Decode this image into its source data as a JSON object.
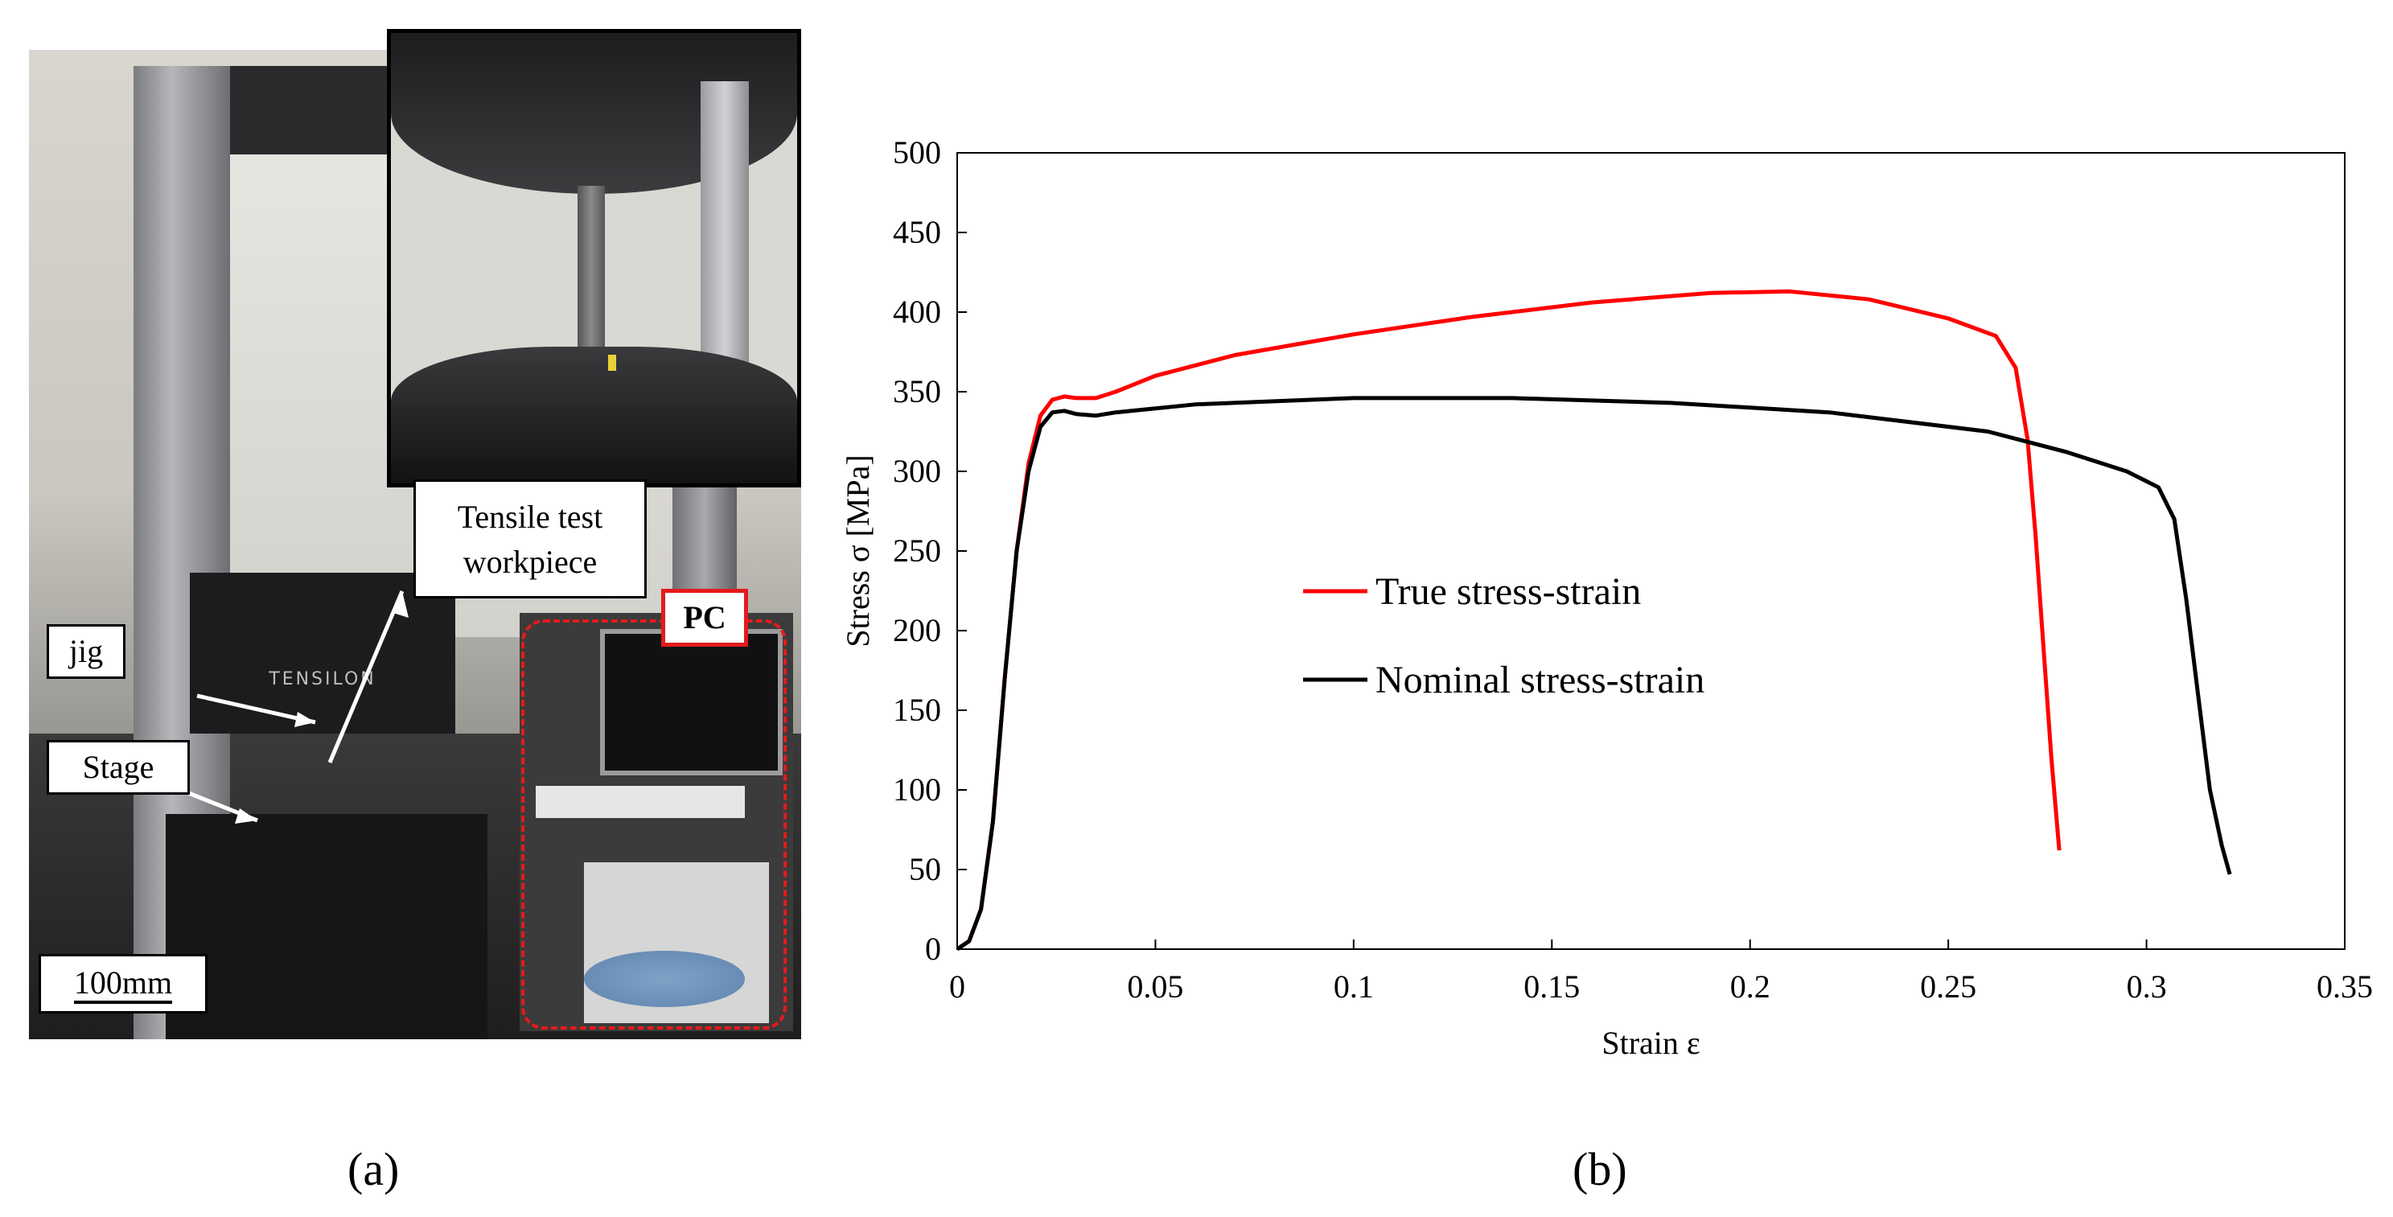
{
  "panel_a": {
    "caption": "(a)",
    "labels": {
      "tensile_line1": "Tensile test",
      "tensile_line2": "workpiece",
      "jig": "jig",
      "stage": "Stage",
      "pc": "PC",
      "scale": "100mm"
    },
    "machine_brand": "TENSILON"
  },
  "panel_b": {
    "caption": "(b)"
  },
  "colors": {
    "true_series": "#ff0000",
    "nominal_series": "#000000",
    "pc_outline": "#e41a1c"
  },
  "chart_data": {
    "type": "line",
    "xlabel": "Strain ε",
    "ylabel": "Stress σ [MPa]",
    "xlim": [
      0,
      0.35
    ],
    "ylim": [
      0,
      500
    ],
    "xticks": [
      0,
      0.05,
      0.1,
      0.15,
      0.2,
      0.25,
      0.3,
      0.35
    ],
    "xtick_labels": [
      "0",
      "0.05",
      "0.1",
      "0.15",
      "0.2",
      "0.25",
      "0.3",
      "0.35"
    ],
    "yticks": [
      0,
      50,
      100,
      150,
      200,
      250,
      300,
      350,
      400,
      450,
      500
    ],
    "ytick_labels": [
      "0",
      "50",
      "100",
      "150",
      "200",
      "250",
      "300",
      "350",
      "400",
      "450",
      "500"
    ],
    "grid": false,
    "legend_position": "center-left",
    "series": [
      {
        "name": "True stress-strain",
        "color": "#ff0000",
        "points": [
          [
            0,
            0
          ],
          [
            0.003,
            5
          ],
          [
            0.006,
            25
          ],
          [
            0.009,
            80
          ],
          [
            0.012,
            170
          ],
          [
            0.015,
            250
          ],
          [
            0.018,
            305
          ],
          [
            0.021,
            335
          ],
          [
            0.024,
            345
          ],
          [
            0.027,
            347
          ],
          [
            0.03,
            346
          ],
          [
            0.035,
            346
          ],
          [
            0.04,
            350
          ],
          [
            0.05,
            360
          ],
          [
            0.07,
            373
          ],
          [
            0.1,
            386
          ],
          [
            0.13,
            397
          ],
          [
            0.16,
            406
          ],
          [
            0.19,
            412
          ],
          [
            0.21,
            413
          ],
          [
            0.23,
            408
          ],
          [
            0.25,
            396
          ],
          [
            0.262,
            385
          ],
          [
            0.267,
            365
          ],
          [
            0.27,
            320
          ],
          [
            0.272,
            260
          ],
          [
            0.274,
            190
          ],
          [
            0.276,
            120
          ],
          [
            0.278,
            62
          ]
        ]
      },
      {
        "name": "Nominal stress-strain",
        "color": "#000000",
        "points": [
          [
            0,
            0
          ],
          [
            0.003,
            5
          ],
          [
            0.006,
            25
          ],
          [
            0.009,
            80
          ],
          [
            0.012,
            170
          ],
          [
            0.015,
            250
          ],
          [
            0.018,
            300
          ],
          [
            0.021,
            328
          ],
          [
            0.024,
            337
          ],
          [
            0.027,
            338
          ],
          [
            0.03,
            336
          ],
          [
            0.035,
            335
          ],
          [
            0.04,
            337
          ],
          [
            0.06,
            342
          ],
          [
            0.1,
            346
          ],
          [
            0.14,
            346
          ],
          [
            0.18,
            343
          ],
          [
            0.22,
            337
          ],
          [
            0.26,
            325
          ],
          [
            0.28,
            312
          ],
          [
            0.295,
            300
          ],
          [
            0.303,
            290
          ],
          [
            0.307,
            270
          ],
          [
            0.31,
            220
          ],
          [
            0.313,
            160
          ],
          [
            0.316,
            100
          ],
          [
            0.319,
            65
          ],
          [
            0.321,
            47
          ]
        ]
      }
    ]
  }
}
